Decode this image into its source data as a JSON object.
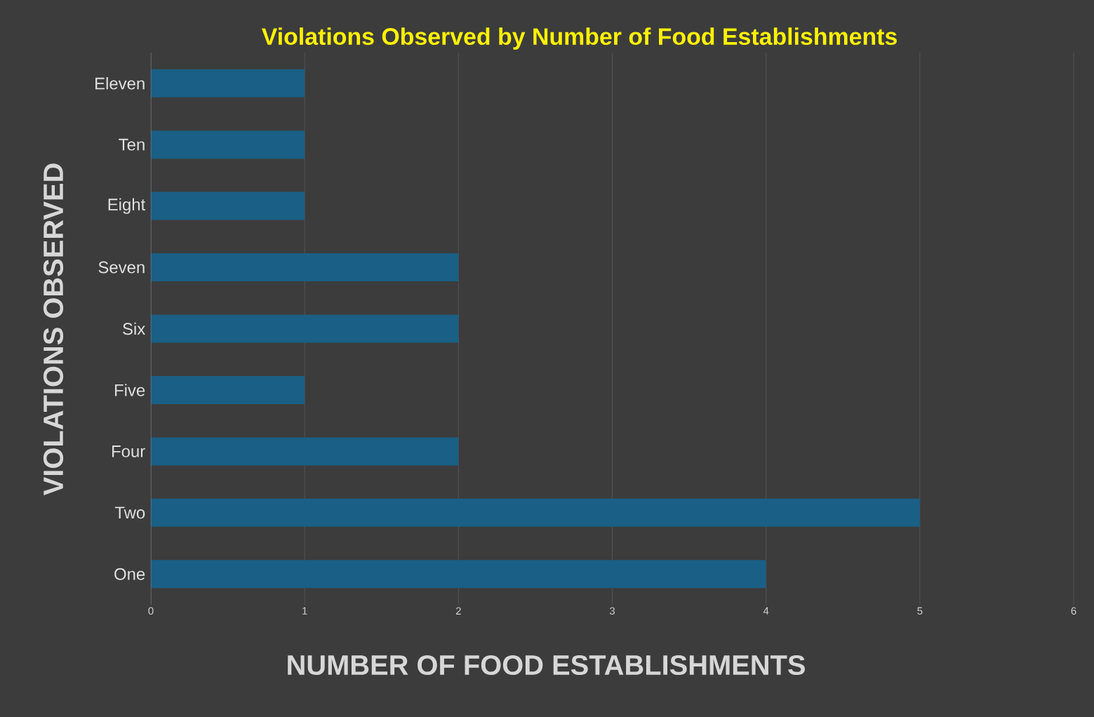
{
  "chart_data": {
    "type": "bar",
    "orientation": "horizontal",
    "title": "Violations Observed by Number of Food Establishments",
    "xlabel": "NUMBER OF FOOD ESTABLISHMENTS",
    "ylabel": "VIOLATIONS OBSERVED",
    "categories": [
      "Eleven",
      "Ten",
      "Eight",
      "Seven",
      "Six",
      "Five",
      "Four",
      "Two",
      "One"
    ],
    "values": [
      1,
      1,
      1,
      2,
      2,
      1,
      2,
      5,
      4
    ],
    "color": "#1a5f85",
    "xlim": [
      0,
      6
    ],
    "xticks": [
      0,
      1,
      2,
      3,
      4,
      5,
      6
    ],
    "grid": "x"
  }
}
